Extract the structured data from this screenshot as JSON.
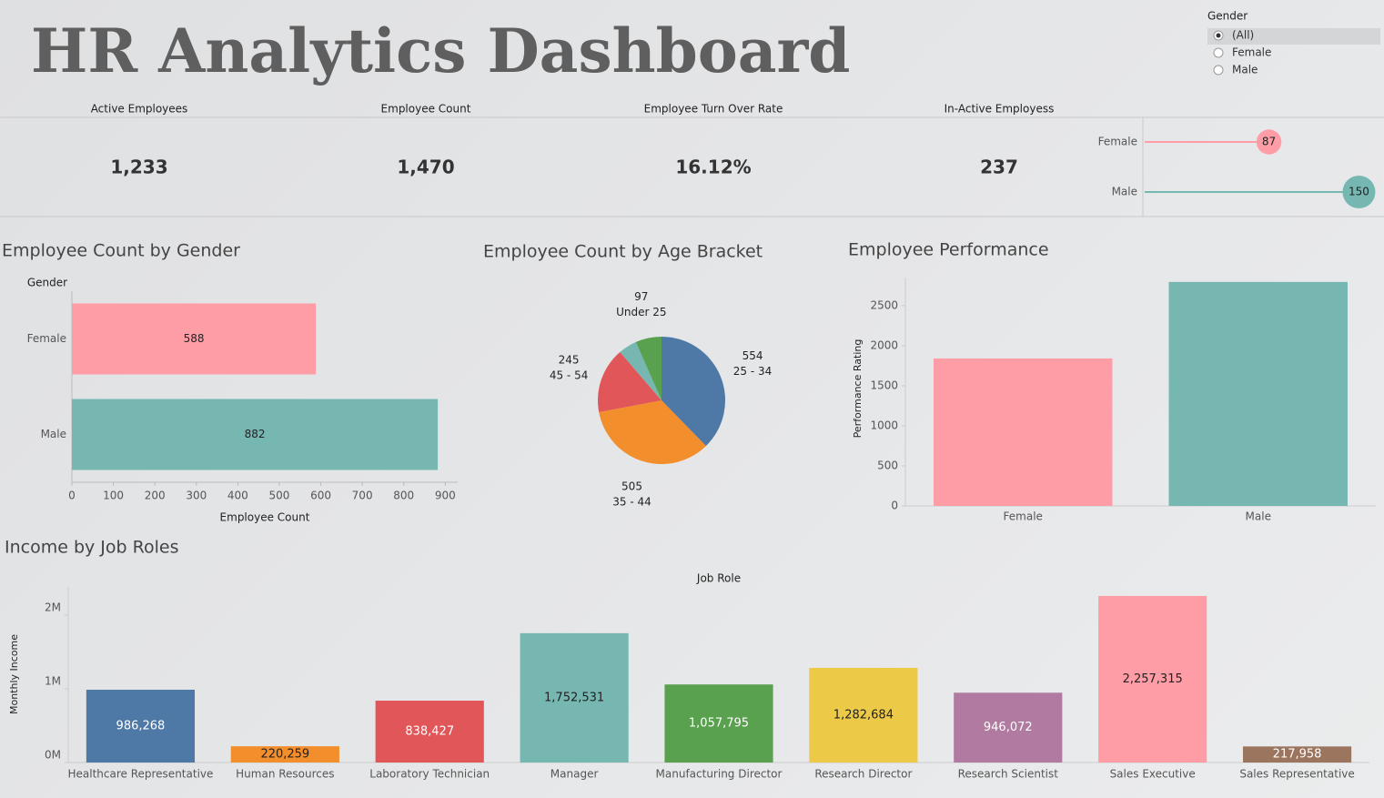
{
  "header": {
    "title": "HR Analytics Dashboard"
  },
  "filter": {
    "label": "Gender",
    "options": [
      "(All)",
      "Female",
      "Male"
    ],
    "selected": 0
  },
  "kpis": [
    {
      "label": "Active Employees",
      "value": "1,233"
    },
    {
      "label": "Employee Count",
      "value": "1,470"
    },
    {
      "label": "Employee Turn Over Rate",
      "value": "16.12%"
    },
    {
      "label": "In-Active Employess",
      "value": "237"
    }
  ],
  "chart_data": [
    {
      "type": "lollipop",
      "categories": [
        "Female",
        "Male"
      ],
      "values": [
        87,
        150
      ],
      "colors": [
        "#ff9da7",
        "#76b7b2"
      ],
      "xlim": [
        0,
        165
      ]
    },
    {
      "type": "hbar",
      "title": "Employee Count by Gender",
      "x_label": "Employee Count",
      "y_label": "Gender",
      "categories": [
        "Female",
        "Male"
      ],
      "values": [
        588,
        882
      ],
      "colors": [
        "#ff9da7",
        "#76b7b2"
      ],
      "xlim": [
        0,
        930
      ],
      "xticks": [
        0,
        100,
        200,
        300,
        400,
        500,
        600,
        700,
        800,
        900
      ]
    },
    {
      "type": "pie",
      "title": "Employee Count by Age Bracket",
      "categories": [
        "25 - 34",
        "35 - 44",
        "45 - 54",
        null,
        "Under 25"
      ],
      "values": [
        554,
        505,
        245,
        69,
        97
      ],
      "colors": [
        "#4e79a7",
        "#f28e2b",
        "#e15759",
        "#76b7b2",
        "#59a14f"
      ]
    },
    {
      "type": "bar",
      "title": "Employee Performance",
      "y_label": "Performance Rating",
      "categories": [
        "Female",
        "Male"
      ],
      "values": [
        1840,
        2795
      ],
      "colors": [
        "#ff9da7",
        "#76b7b2"
      ],
      "ylim": [
        0,
        2850
      ],
      "yticks": [
        0,
        500,
        1000,
        1500,
        2000,
        2500
      ]
    },
    {
      "type": "bar",
      "title": "Income by Job Roles",
      "x_label": "Job Role",
      "y_label": "Monthly Income",
      "categories": [
        "Healthcare Representative",
        "Human Resources",
        "Laboratory Technician",
        "Manager",
        "Manufacturing Director",
        "Research Director",
        "Research Scientist",
        "Sales Executive",
        "Sales Representative"
      ],
      "values": [
        986268,
        220259,
        838427,
        1752531,
        1057795,
        1282684,
        946072,
        2257315,
        217958
      ],
      "value_labels": [
        "986,268",
        "220,259",
        "838,427",
        "1,752,531",
        "1,057,795",
        "1,282,684",
        "946,072",
        "2,257,315",
        "217,958"
      ],
      "colors": [
        "#4e79a7",
        "#f28e2b",
        "#e15759",
        "#76b7b2",
        "#59a14f",
        "#edc948",
        "#b07aa1",
        "#ff9da7",
        "#9c755f"
      ],
      "ylim": [
        0,
        2380000
      ],
      "yticks": [
        {
          "value": 0,
          "label": "0M"
        },
        {
          "value": 1000000,
          "label": "1M"
        },
        {
          "value": 2000000,
          "label": "2M"
        }
      ]
    }
  ]
}
